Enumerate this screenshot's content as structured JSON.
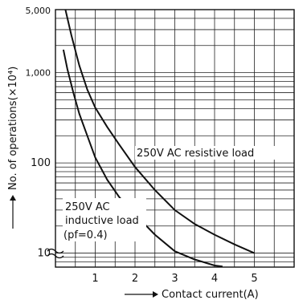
{
  "chart_data": {
    "type": "line",
    "xlabel": "Contact current(A)",
    "ylabel": "No. of operations(×10⁴)",
    "x_scale": "linear",
    "y_scale": "log",
    "xlim": [
      0,
      6
    ],
    "ylim": [
      7,
      5000
    ],
    "grid": true,
    "x_ticks": [
      1,
      2,
      3,
      4,
      5
    ],
    "y_ticks": [
      {
        "value": 10,
        "label": "10"
      },
      {
        "value": 100,
        "label": "100"
      },
      {
        "value": 1000,
        "label": "1,000"
      },
      {
        "value": 5000,
        "label": "5,000"
      }
    ],
    "series": [
      {
        "name": "250V AC resistive load",
        "label": "250V AC resistive load",
        "x": [
          0.25,
          0.4,
          0.6,
          0.8,
          1.0,
          1.3,
          1.6,
          2.0,
          2.5,
          3.0,
          3.5,
          4.0,
          4.5,
          5.0
        ],
        "y": [
          5000,
          2600,
          1200,
          650,
          410,
          250,
          160,
          90,
          50,
          30,
          21,
          16,
          12.5,
          10
        ]
      },
      {
        "name": "250V AC inductive load (pf=0.4)",
        "label_lines": [
          "250V AC",
          "inductive load",
          "(pf=0.4)"
        ],
        "x": [
          0.2,
          0.3,
          0.45,
          0.6,
          0.8,
          1.0,
          1.3,
          1.6,
          2.0,
          2.5,
          3.0,
          3.5,
          4.0,
          4.2
        ],
        "y": [
          1800,
          1100,
          600,
          350,
          200,
          115,
          65,
          42,
          27,
          16,
          10.5,
          8.5,
          7.3,
          7.1
        ]
      }
    ]
  }
}
